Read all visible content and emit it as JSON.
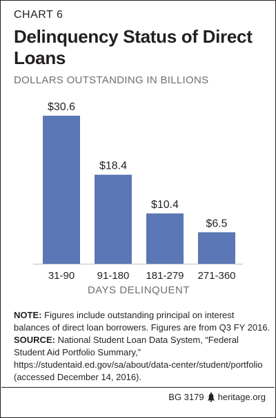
{
  "header": {
    "kicker": "CHART 6",
    "title": "Delinquency Status of Direct Loans",
    "subtitle": "DOLLARS OUTSTANDING IN BILLIONS"
  },
  "chart_data": {
    "type": "bar",
    "title": "Delinquency Status of Direct Loans",
    "subtitle": "DOLLARS OUTSTANDING IN BILLIONS",
    "categories": [
      "31-90",
      "91-180",
      "181-279",
      "271-360"
    ],
    "values": [
      30.6,
      18.4,
      10.4,
      6.5
    ],
    "value_labels": [
      "$30.6",
      "$18.4",
      "$10.4",
      "$6.5"
    ],
    "xlabel": "DAYS DELINQUENT",
    "ylabel": "",
    "ylim": [
      0,
      30.6
    ],
    "grid": false,
    "legend": "none",
    "bar_color": "#5b77b5"
  },
  "notes": {
    "note_label": "NOTE:",
    "note_text": " Figures include outstanding principal on interest balances of direct loan borrowers. Figures are from Q3 FY 2016.",
    "source_label": "SOURCE:",
    "source_text": " National Student Loan Data System, “Federal Student Aid Portfolio Summary,” https://studentaid.ed.gov/sa/about/data-center/student/portfolio (accessed December 14, 2016)."
  },
  "footer": {
    "doc_id": "BG 3179",
    "site": "heritage.org",
    "icon": "liberty-bell-icon"
  },
  "colors": {
    "bar": "#5b77b5",
    "text": "#231f20",
    "subtle": "#6d6e71"
  }
}
